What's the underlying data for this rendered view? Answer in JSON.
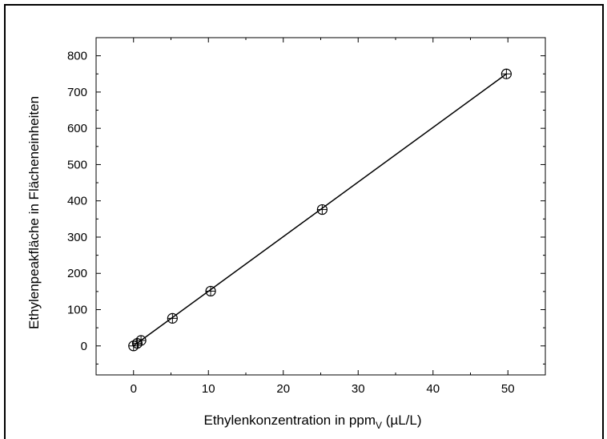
{
  "chart_data": {
    "type": "scatter",
    "xlabel": "Ethylenkonzentration in ppm",
    "xlabel_subscript": "V",
    "xlabel_suffix": " (µL/L)",
    "ylabel": "Ethylenpeakfläche in Flächeneinheiten",
    "xlim": [
      -5,
      55
    ],
    "ylim": [
      -80,
      850
    ],
    "xticks": [
      0,
      10,
      20,
      30,
      40,
      50
    ],
    "yticks": [
      0,
      100,
      200,
      300,
      400,
      500,
      600,
      700,
      800
    ],
    "grid": false,
    "series": [
      {
        "marker": "circle-plus",
        "points": [
          {
            "x": 0,
            "y": 0
          },
          {
            "x": 0.5,
            "y": 7
          },
          {
            "x": 1,
            "y": 15
          },
          {
            "x": 5.2,
            "y": 76
          },
          {
            "x": 10.3,
            "y": 151
          },
          {
            "x": 25.2,
            "y": 376
          },
          {
            "x": 49.8,
            "y": 750
          }
        ]
      }
    ],
    "fit_line": {
      "x": [
        0,
        49.8
      ],
      "y": [
        0,
        750
      ]
    },
    "colors": {
      "line": "#000000",
      "marker": "#000000"
    }
  }
}
